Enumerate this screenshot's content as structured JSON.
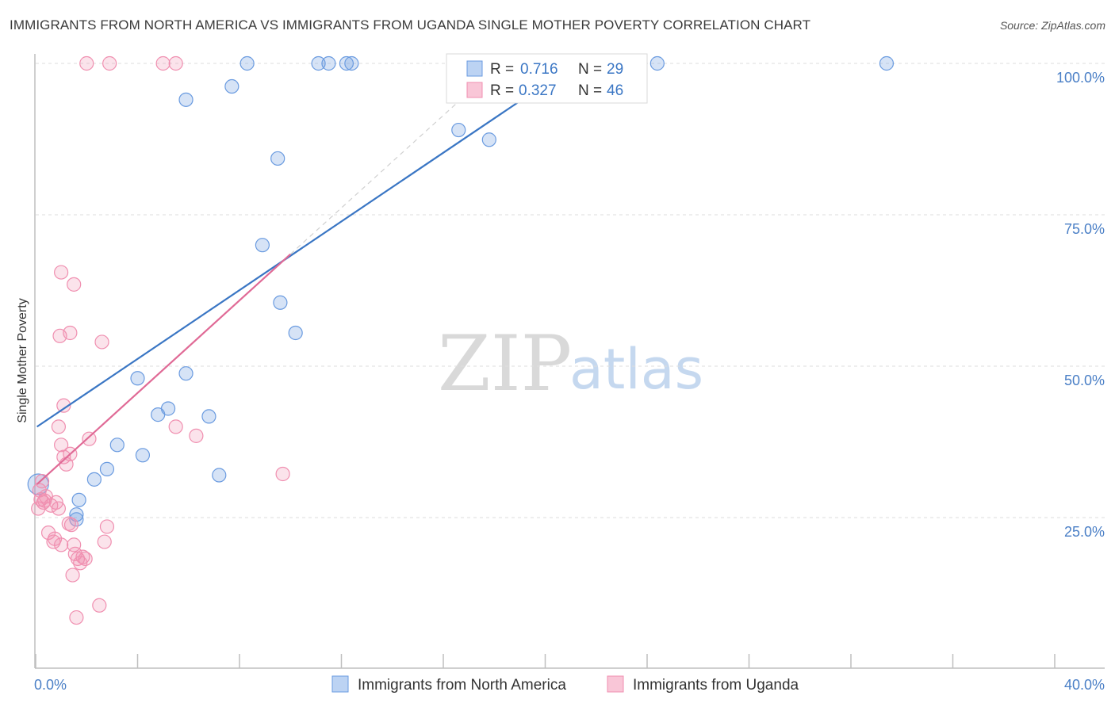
{
  "header": {
    "title": "IMMIGRANTS FROM NORTH AMERICA VS IMMIGRANTS FROM UGANDA SINGLE MOTHER POVERTY CORRELATION CHART",
    "source": "Source: ZipAtlas.com"
  },
  "watermark": {
    "zip": "ZIP",
    "atlas": "atlas"
  },
  "chart_data": {
    "type": "scatter",
    "title": "IMMIGRANTS FROM NORTH AMERICA VS IMMIGRANTS FROM UGANDA SINGLE MOTHER POVERTY CORRELATION CHART",
    "xlabel": "",
    "ylabel": "Single Mother Poverty",
    "xlim": [
      0,
      40
    ],
    "ylim": [
      0,
      102
    ],
    "x_tick_labels": [
      "0.0%",
      "40.0%"
    ],
    "y_ticks": [
      25,
      50,
      75,
      100
    ],
    "y_tick_labels": [
      "25.0%",
      "50.0%",
      "75.0%",
      "100.0%"
    ],
    "grid": true,
    "legend_position": "top-center",
    "colors": {
      "north_america": "#6a9be0",
      "north_america_line": "#3a76c4",
      "uganda": "#f08fb0",
      "uganda_line": "#e06a96",
      "axis_text": "#4a7fc6"
    },
    "series": [
      {
        "name": "Immigrants from North America",
        "R": "0.716",
        "N": "29",
        "trend": {
          "x": [
            0.05,
            21.2
          ],
          "y": [
            40.0,
            100.0
          ]
        },
        "points": [
          [
            0.1,
            30.5
          ],
          [
            1.6,
            25.5
          ],
          [
            1.7,
            27.9
          ],
          [
            2.3,
            31.3
          ],
          [
            2.8,
            33.0
          ],
          [
            3.2,
            37.0
          ],
          [
            4.0,
            48.0
          ],
          [
            4.2,
            35.3
          ],
          [
            4.8,
            42.0
          ],
          [
            5.2,
            43.0
          ],
          [
            5.9,
            48.8
          ],
          [
            6.8,
            41.7
          ],
          [
            7.2,
            32.0
          ],
          [
            5.9,
            94.0
          ],
          [
            7.7,
            96.2
          ],
          [
            8.3,
            100.0
          ],
          [
            9.5,
            84.3
          ],
          [
            8.9,
            70.0
          ],
          [
            9.6,
            60.5
          ],
          [
            10.2,
            55.5
          ],
          [
            11.1,
            100.0
          ],
          [
            11.5,
            100.0
          ],
          [
            12.2,
            100.0
          ],
          [
            12.4,
            100.0
          ],
          [
            16.6,
            89.0
          ],
          [
            17.8,
            87.4
          ],
          [
            24.4,
            100.0
          ],
          [
            33.4,
            100.0
          ],
          [
            1.6,
            24.7
          ]
        ]
      },
      {
        "name": "Immigrants from Uganda",
        "R": "0.327",
        "N": "46",
        "trend": {
          "x": [
            0.05,
            10.0
          ],
          "y": [
            30.5,
            68.5
          ]
        },
        "points": [
          [
            0.1,
            26.5
          ],
          [
            0.2,
            28.0
          ],
          [
            0.25,
            31.0
          ],
          [
            0.3,
            27.5
          ],
          [
            0.4,
            28.5
          ],
          [
            0.5,
            22.5
          ],
          [
            0.6,
            27.0
          ],
          [
            0.7,
            21.0
          ],
          [
            0.8,
            27.5
          ],
          [
            0.9,
            26.5
          ],
          [
            0.75,
            21.5
          ],
          [
            1.0,
            20.5
          ],
          [
            0.9,
            40.0
          ],
          [
            1.0,
            37.0
          ],
          [
            1.1,
            43.5
          ],
          [
            1.1,
            35.0
          ],
          [
            1.2,
            33.8
          ],
          [
            1.3,
            24.0
          ],
          [
            1.4,
            23.8
          ],
          [
            1.5,
            20.5
          ],
          [
            1.35,
            35.5
          ],
          [
            1.55,
            19.0
          ],
          [
            1.65,
            18.2
          ],
          [
            1.75,
            17.5
          ],
          [
            1.85,
            18.5
          ],
          [
            1.95,
            18.2
          ],
          [
            2.1,
            38.0
          ],
          [
            1.45,
            15.5
          ],
          [
            1.6,
            8.5
          ],
          [
            2.5,
            10.5
          ],
          [
            0.95,
            55.0
          ],
          [
            1.35,
            55.5
          ],
          [
            1.0,
            65.5
          ],
          [
            1.5,
            63.5
          ],
          [
            2.6,
            54.0
          ],
          [
            2.8,
            23.5
          ],
          [
            2.7,
            21.0
          ],
          [
            5.5,
            40.0
          ],
          [
            6.3,
            38.5
          ],
          [
            9.7,
            32.2
          ],
          [
            2.0,
            100.0
          ],
          [
            2.9,
            100.0
          ],
          [
            5.0,
            100.0
          ],
          [
            5.5,
            100.0
          ],
          [
            0.35,
            27.8
          ],
          [
            0.15,
            29.5
          ]
        ]
      }
    ]
  }
}
